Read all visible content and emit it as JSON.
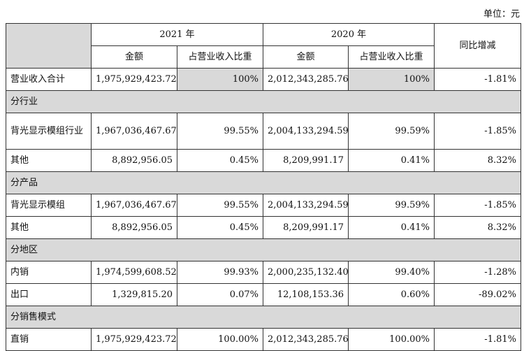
{
  "unit_label": "单位：元",
  "header": {
    "year1": "2021 年",
    "year2": "2020 年",
    "amount": "金额",
    "ratio": "占营业收入比重",
    "yoy": "同比增减"
  },
  "rows": [
    {
      "label": "营业收入合计",
      "a1": "1,975,929,423.72",
      "r1": "100%",
      "a2": "2,012,343,285.76",
      "r2": "100%",
      "yoy": "-1.81%"
    },
    {
      "section": "分行业"
    },
    {
      "label": "背光显示模组行业",
      "a1": "1,967,036,467.67",
      "r1": "99.55%",
      "a2": "2,004,133,294.59",
      "r2": "99.59%",
      "yoy": "-1.85%"
    },
    {
      "label": "其他",
      "a1": "8,892,956.05",
      "r1": "0.45%",
      "a2": "8,209,991.17",
      "r2": "0.41%",
      "yoy": "8.32%"
    },
    {
      "section": "分产品"
    },
    {
      "label": "背光显示模组",
      "a1": "1,967,036,467.67",
      "r1": "99.55%",
      "a2": "2,004,133,294.59",
      "r2": "99.59%",
      "yoy": "-1.85%"
    },
    {
      "label": "其他",
      "a1": "8,892,956.05",
      "r1": "0.45%",
      "a2": "8,209,991.17",
      "r2": "0.41%",
      "yoy": "8.32%"
    },
    {
      "section": "分地区"
    },
    {
      "label": "内销",
      "a1": "1,974,599,608.52",
      "r1": "99.93%",
      "a2": "2,000,235,132.40",
      "r2": "99.40%",
      "yoy": "-1.28%"
    },
    {
      "label": "出口",
      "a1": "1,329,815.20",
      "r1": "0.07%",
      "a2": "12,108,153.36",
      "r2": "0.60%",
      "yoy": "-89.02%"
    },
    {
      "section": "分销售模式"
    },
    {
      "label": "直销",
      "a1": "1,975,929,423.72",
      "r1": "100.00%",
      "a2": "2,012,343,285.76",
      "r2": "100.00%",
      "yoy": "-1.81%"
    }
  ]
}
